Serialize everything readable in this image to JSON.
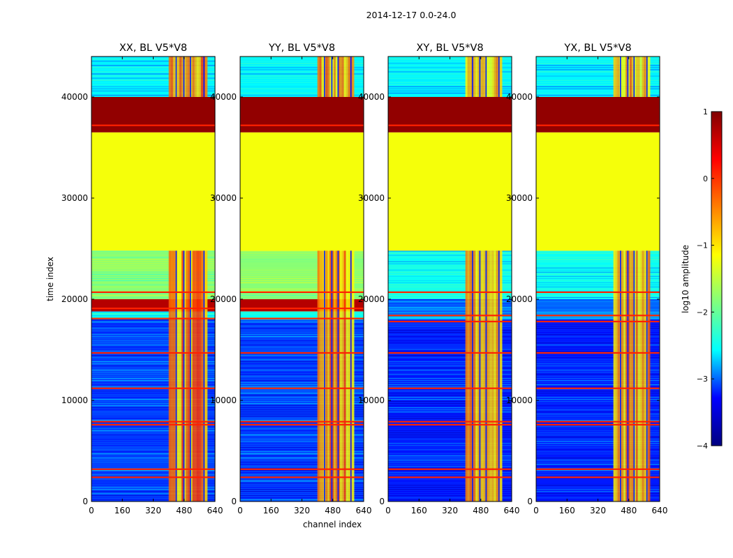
{
  "figure": {
    "suptitle": "2014-12-17 0.0-24.0",
    "xlabel": "channel index",
    "ylabel": "time index"
  },
  "colorbar": {
    "label": "log10 amplitude",
    "range": [
      -4,
      1
    ],
    "ticks": [
      "1",
      "0",
      "−1",
      "−2",
      "−3",
      "−4"
    ],
    "tick_values": [
      1,
      0,
      -1,
      -2,
      -3,
      -4
    ],
    "colormap": "jet",
    "stops": [
      "#000080",
      "#0000ff",
      "#00ffff",
      "#7fff7f",
      "#ffff00",
      "#ff7f00",
      "#ff0000",
      "#800000"
    ]
  },
  "chart_data": [
    {
      "type": "heatmap",
      "title": "XX, BL V5*V8",
      "xlim": [
        0,
        640
      ],
      "ylim": [
        0,
        44000
      ],
      "xticks": [
        "0",
        "160",
        "320",
        "480",
        "640"
      ],
      "yticks": [
        "0",
        "10000",
        "20000",
        "30000",
        "40000"
      ],
      "bands": [
        {
          "t0": 0,
          "t1": 18000,
          "level": -3.1
        },
        {
          "t0": 18000,
          "t1": 18800,
          "level": -2.5
        },
        {
          "t0": 18800,
          "t1": 20000,
          "level": 0.7
        },
        {
          "t0": 20000,
          "t1": 24800,
          "level": -1.8
        },
        {
          "t0": 24800,
          "t1": 36500,
          "level": -1.2
        },
        {
          "t0": 36500,
          "t1": 40000,
          "level": 0.9
        },
        {
          "t0": 40000,
          "t1": 44000,
          "level": -2.6
        }
      ],
      "hot_channels": [
        [
          400,
          600
        ]
      ],
      "hot_channel_level": -0.6,
      "flagged_rows": [
        2400,
        3200,
        7600,
        7900,
        11200,
        14700,
        18100,
        19100,
        20700,
        37200
      ]
    },
    {
      "type": "heatmap",
      "title": "YY, BL V5*V8",
      "xlim": [
        0,
        640
      ],
      "ylim": [
        0,
        44000
      ],
      "xticks": [
        "0",
        "160",
        "320",
        "480",
        "640"
      ],
      "yticks": [
        "0",
        "10000",
        "20000",
        "30000",
        "40000"
      ],
      "bands": [
        {
          "t0": 0,
          "t1": 18000,
          "level": -3.1
        },
        {
          "t0": 18000,
          "t1": 18800,
          "level": -2.5
        },
        {
          "t0": 18800,
          "t1": 20000,
          "level": 0.7
        },
        {
          "t0": 20000,
          "t1": 24800,
          "level": -1.8
        },
        {
          "t0": 24800,
          "t1": 36500,
          "level": -1.2
        },
        {
          "t0": 36500,
          "t1": 40000,
          "level": 0.9
        },
        {
          "t0": 40000,
          "t1": 44000,
          "level": -2.6
        }
      ],
      "hot_channels": [
        [
          400,
          590
        ]
      ],
      "hot_channel_level": -0.6,
      "flagged_rows": [
        2400,
        3200,
        7600,
        7900,
        11200,
        14700,
        18100,
        19100,
        20700,
        37200
      ]
    },
    {
      "type": "heatmap",
      "title": "XY, BL V5*V8",
      "xlim": [
        0,
        640
      ],
      "ylim": [
        0,
        44000
      ],
      "xticks": [
        "0",
        "160",
        "320",
        "480",
        "640"
      ],
      "yticks": [
        "0",
        "10000",
        "20000",
        "30000",
        "40000"
      ],
      "bands": [
        {
          "t0": 0,
          "t1": 18000,
          "level": -3.2
        },
        {
          "t0": 18000,
          "t1": 18800,
          "level": -2.8
        },
        {
          "t0": 18800,
          "t1": 20000,
          "level": -3.0
        },
        {
          "t0": 20000,
          "t1": 24800,
          "level": -2.5
        },
        {
          "t0": 24800,
          "t1": 36500,
          "level": -1.2
        },
        {
          "t0": 36500,
          "t1": 40000,
          "level": 0.9
        },
        {
          "t0": 40000,
          "t1": 44000,
          "level": -2.6
        }
      ],
      "hot_channels": [
        [
          400,
          590
        ]
      ],
      "hot_channel_level": -0.8,
      "flagged_rows": [
        2400,
        3200,
        7600,
        7900,
        11200,
        14700,
        17800,
        18400,
        20700,
        37200
      ]
    },
    {
      "type": "heatmap",
      "title": "YX, BL V5*V8",
      "xlim": [
        0,
        640
      ],
      "ylim": [
        0,
        44000
      ],
      "xticks": [
        "0",
        "160",
        "320",
        "480",
        "640"
      ],
      "yticks": [
        "0",
        "10000",
        "20000",
        "30000",
        "40000"
      ],
      "bands": [
        {
          "t0": 0,
          "t1": 18000,
          "level": -3.2
        },
        {
          "t0": 18000,
          "t1": 18800,
          "level": -2.8
        },
        {
          "t0": 18800,
          "t1": 20000,
          "level": -3.0
        },
        {
          "t0": 20000,
          "t1": 24800,
          "level": -2.5
        },
        {
          "t0": 24800,
          "t1": 36500,
          "level": -1.2
        },
        {
          "t0": 36500,
          "t1": 40000,
          "level": 0.9
        },
        {
          "t0": 40000,
          "t1": 44000,
          "level": -2.6
        }
      ],
      "hot_channels": [
        [
          400,
          590
        ]
      ],
      "hot_channel_level": -0.8,
      "flagged_rows": [
        2400,
        3200,
        7600,
        7900,
        11200,
        14700,
        17800,
        18400,
        20700,
        37200
      ]
    }
  ]
}
